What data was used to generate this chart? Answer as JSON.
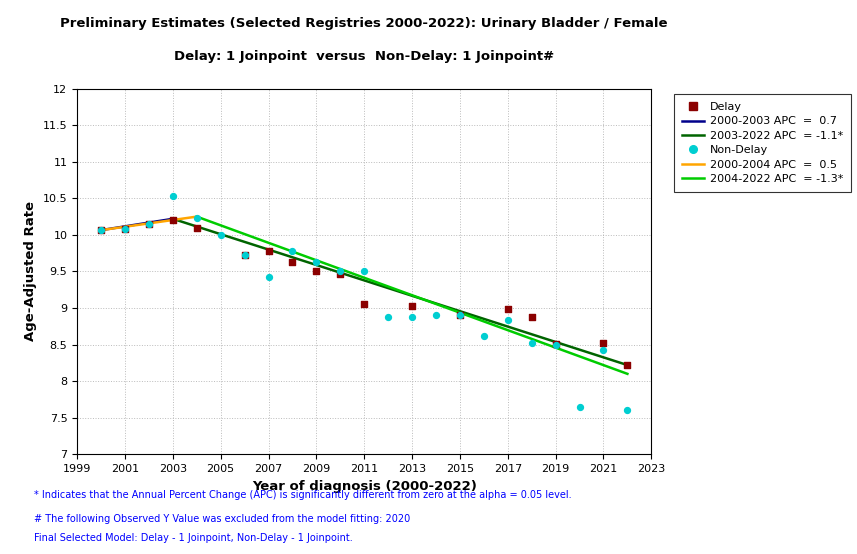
{
  "title_line1": "Preliminary Estimates (Selected Registries 2000-2022): Urinary Bladder / Female",
  "title_line2": "Delay: 1 Joinpoint  versus  Non-Delay: 1 Joinpoint#",
  "xlabel": "Year of diagnosis (2000-2022)",
  "ylabel": "Age-Adjusted Rate",
  "xlim": [
    1999,
    2023
  ],
  "ylim": [
    7,
    12
  ],
  "yticks": [
    7,
    7.5,
    8,
    8.5,
    9,
    9.5,
    10,
    10.5,
    11,
    11.5,
    12
  ],
  "xticks": [
    1999,
    2001,
    2003,
    2005,
    2007,
    2009,
    2011,
    2013,
    2015,
    2017,
    2019,
    2021,
    2023
  ],
  "delay_points_x": [
    2000,
    2001,
    2002,
    2003,
    2004,
    2006,
    2007,
    2008,
    2009,
    2010,
    2011,
    2013,
    2015,
    2017,
    2018,
    2019,
    2021,
    2022
  ],
  "delay_points_y": [
    10.07,
    10.08,
    10.15,
    10.2,
    10.1,
    9.72,
    9.78,
    9.63,
    9.5,
    9.47,
    9.05,
    9.03,
    8.9,
    8.98,
    8.88,
    8.51,
    8.52,
    8.22
  ],
  "nodelay_points_x": [
    2000,
    2001,
    2002,
    2003,
    2004,
    2005,
    2006,
    2007,
    2008,
    2009,
    2010,
    2011,
    2012,
    2013,
    2014,
    2015,
    2016,
    2017,
    2018,
    2019,
    2020,
    2021,
    2022
  ],
  "nodelay_points_y": [
    10.07,
    10.08,
    10.15,
    10.53,
    10.23,
    10.0,
    9.72,
    9.42,
    9.78,
    9.63,
    9.5,
    9.5,
    8.88,
    8.88,
    8.9,
    8.9,
    8.62,
    8.83,
    8.52,
    8.5,
    7.65,
    8.42,
    7.6
  ],
  "delay_line1_x": [
    2000,
    2003
  ],
  "delay_line1_y": [
    10.065,
    10.22
  ],
  "delay_line2_x": [
    2003,
    2022
  ],
  "delay_line2_y": [
    10.22,
    8.22
  ],
  "nodelay_line1_x": [
    2000,
    2004
  ],
  "nodelay_line1_y": [
    10.065,
    10.25
  ],
  "nodelay_line2_x": [
    2004,
    2022
  ],
  "nodelay_line2_y": [
    10.25,
    8.1
  ],
  "delay_color": "#8B0000",
  "nodelay_color": "#00CED1",
  "delay_line1_color": "#00008B",
  "delay_line2_color": "#006400",
  "nodelay_line1_color": "#FFA500",
  "nodelay_line2_color": "#00CC00",
  "legend_delay_label": "Delay",
  "legend_delay_line1": "2000-2003 APC  =  0.7",
  "legend_delay_line2": "2003-2022 APC  = -1.1*",
  "legend_nodelay_label": "Non-Delay",
  "legend_nodelay_line1": "2000-2004 APC  =  0.5",
  "legend_nodelay_line2": "2004-2022 APC  = -1.3*",
  "footnote1": "* Indicates that the Annual Percent Change (APC) is significantly different from zero at the alpha = 0.05 level.",
  "footnote2": "# The following Observed Y Value was excluded from the model fitting: 2020",
  "footnote3": "Final Selected Model: Delay - 1 Joinpoint, Non-Delay - 1 Joinpoint.",
  "background_color": "#FFFFFF",
  "grid_color": "#AAAAAA"
}
